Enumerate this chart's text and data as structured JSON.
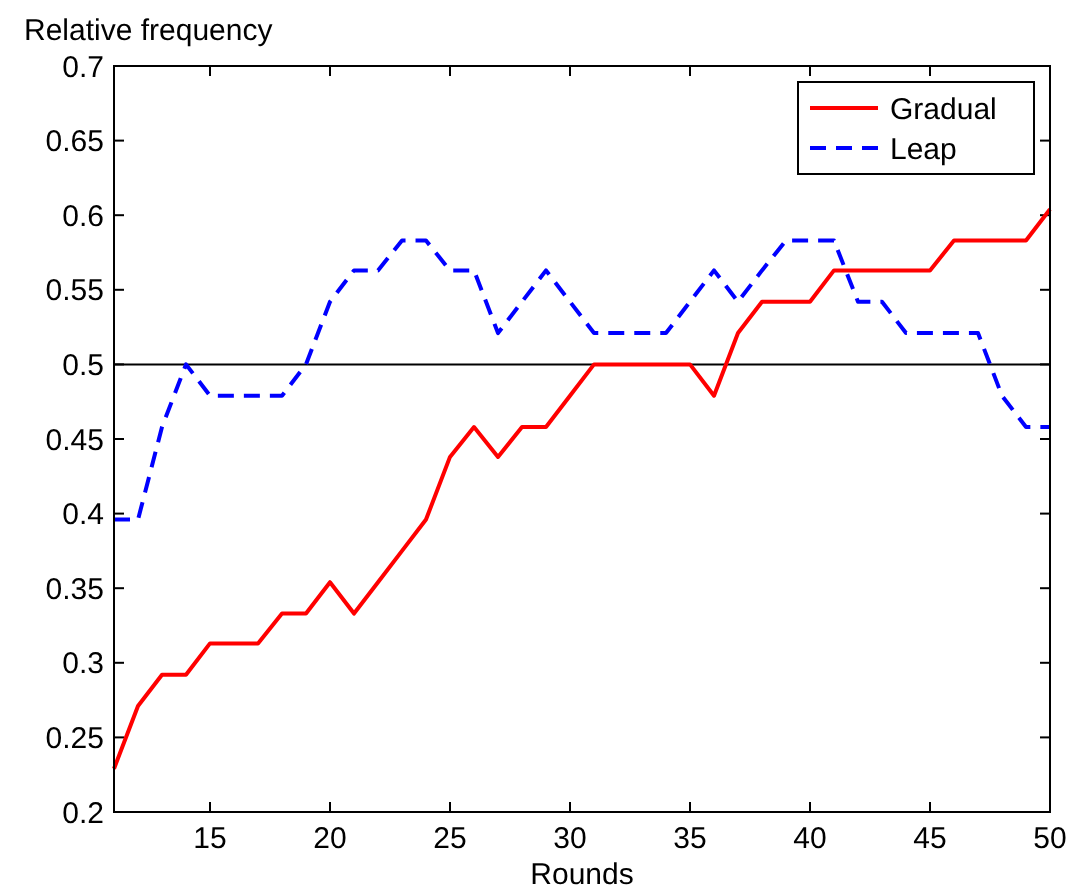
{
  "chart_data": {
    "type": "line",
    "ylabel": "Relative frequency",
    "xlabel": "Rounds",
    "x": [
      11,
      12,
      13,
      14,
      15,
      16,
      17,
      18,
      19,
      20,
      21,
      22,
      23,
      24,
      25,
      26,
      27,
      28,
      29,
      30,
      31,
      32,
      33,
      34,
      35,
      36,
      37,
      38,
      39,
      40,
      41,
      42,
      43,
      44,
      45,
      46,
      47,
      48,
      49,
      50
    ],
    "series": [
      {
        "name": "Gradual",
        "color": "#ff0000",
        "line_style": "solid",
        "values": [
          0.229,
          0.271,
          0.292,
          0.292,
          0.313,
          0.313,
          0.313,
          0.333,
          0.333,
          0.354,
          0.333,
          0.354,
          0.375,
          0.396,
          0.438,
          0.458,
          0.438,
          0.458,
          0.458,
          0.479,
          0.5,
          0.5,
          0.5,
          0.5,
          0.5,
          0.479,
          0.521,
          0.542,
          0.542,
          0.542,
          0.563,
          0.563,
          0.563,
          0.563,
          0.563,
          0.583,
          0.583,
          0.583,
          0.583,
          0.604
        ]
      },
      {
        "name": "Leap",
        "color": "#0000ff",
        "line_style": "dashed",
        "values": [
          0.396,
          0.396,
          0.458,
          0.5,
          0.479,
          0.479,
          0.479,
          0.479,
          0.5,
          0.542,
          0.563,
          0.563,
          0.583,
          0.583,
          0.563,
          0.563,
          0.521,
          0.542,
          0.563,
          0.542,
          0.521,
          0.521,
          0.521,
          0.521,
          0.542,
          0.563,
          0.542,
          0.563,
          0.583,
          0.583,
          0.583,
          0.542,
          0.542,
          0.521,
          0.521,
          0.521,
          0.521,
          0.479,
          0.458,
          0.458
        ]
      }
    ],
    "xlim": [
      11,
      50
    ],
    "xticks": [
      15,
      20,
      25,
      30,
      35,
      40,
      45,
      50
    ],
    "ylim": [
      0.2,
      0.7
    ],
    "yticks": [
      0.2,
      0.25,
      0.3,
      0.35,
      0.4,
      0.45,
      0.5,
      0.55,
      0.6,
      0.65,
      0.7
    ],
    "ref_lines": [
      {
        "axis": "y",
        "value": 0.5,
        "color": "#000000"
      }
    ],
    "legend": "top right",
    "grid": false
  }
}
